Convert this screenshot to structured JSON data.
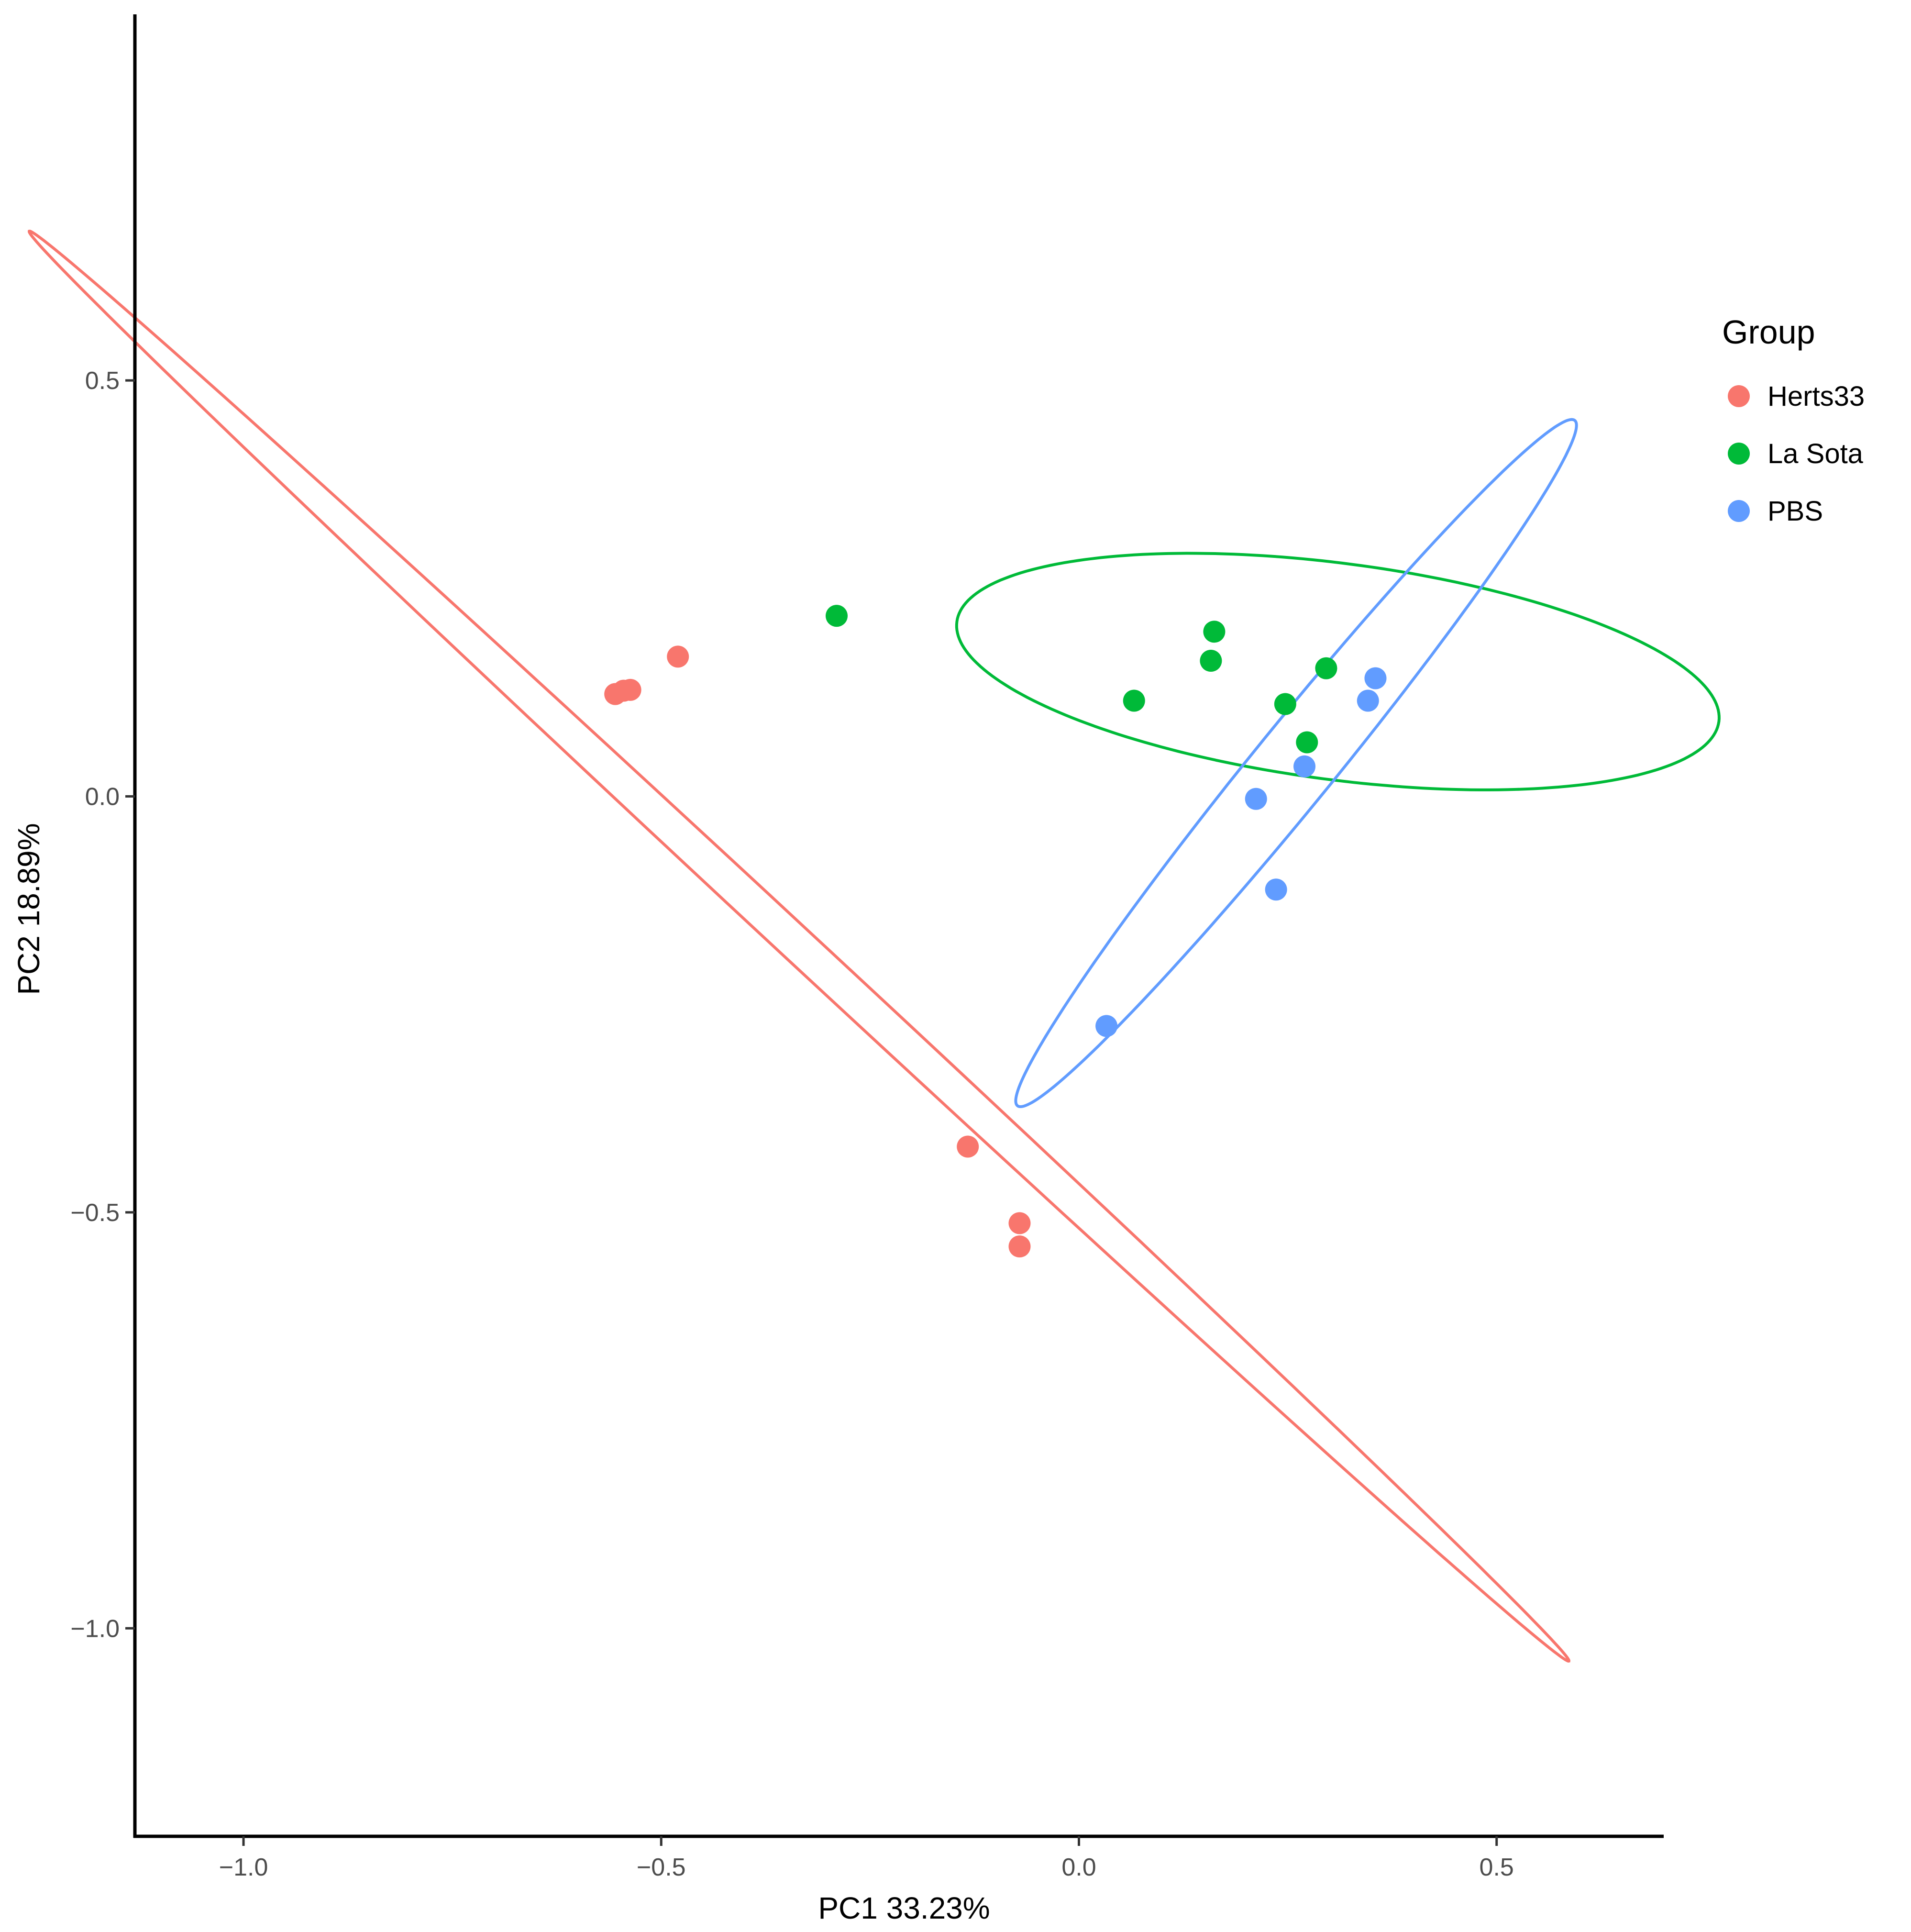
{
  "chart_data": {
    "type": "scatter",
    "title": "",
    "xlabel": "PC1 33.23%",
    "ylabel": "PC2 18.89%",
    "xlim": [
      -1.13,
      0.7
    ],
    "ylim": [
      -1.25,
      0.94
    ],
    "x_ticks": [
      -1.0,
      -0.5,
      0.0,
      0.5
    ],
    "x_tick_labels": [
      "−1.0",
      "−0.5",
      "0.0",
      "0.5"
    ],
    "y_ticks": [
      0.5,
      0.0,
      -0.5,
      -1.0
    ],
    "y_tick_labels": [
      "0.5",
      "0.0",
      "−0.5",
      "−1.0"
    ],
    "grid": false,
    "legend": {
      "title": "Group",
      "position": "right"
    },
    "series": [
      {
        "name": "Herts33",
        "color": "#F8766D",
        "points": [
          [
            -0.555,
            0.123
          ],
          [
            -0.545,
            0.127
          ],
          [
            -0.537,
            0.128
          ],
          [
            -0.48,
            0.168
          ],
          [
            -0.133,
            -0.421
          ],
          [
            -0.071,
            -0.513
          ],
          [
            -0.071,
            -0.541
          ]
        ],
        "ellipse": {
          "center": [
            -0.335,
            -0.18
          ],
          "semi_major": 1.26,
          "semi_minor": 0.021,
          "angle_deg": -43.0
        }
      },
      {
        "name": "La Sota",
        "color": "#00BA38",
        "points": [
          [
            -0.29,
            0.217
          ],
          [
            0.066,
            0.115
          ],
          [
            0.158,
            0.163
          ],
          [
            0.162,
            0.198
          ],
          [
            0.247,
            0.111
          ],
          [
            0.273,
            0.065
          ],
          [
            0.296,
            0.154
          ]
        ],
        "ellipse": {
          "center": [
            0.31,
            0.15
          ],
          "semi_major": 0.46,
          "semi_minor": 0.13,
          "angle_deg": -7.5
        }
      },
      {
        "name": "PBS",
        "color": "#619CFF",
        "points": [
          [
            0.033,
            -0.276
          ],
          [
            0.212,
            -0.003
          ],
          [
            0.236,
            -0.112
          ],
          [
            0.27,
            0.036
          ],
          [
            0.346,
            0.115
          ],
          [
            0.355,
            0.142
          ]
        ],
        "ellipse": {
          "center": [
            0.26,
            0.04
          ],
          "semi_major": 0.53,
          "semi_minor": 0.048,
          "angle_deg": 51.0
        }
      }
    ]
  }
}
